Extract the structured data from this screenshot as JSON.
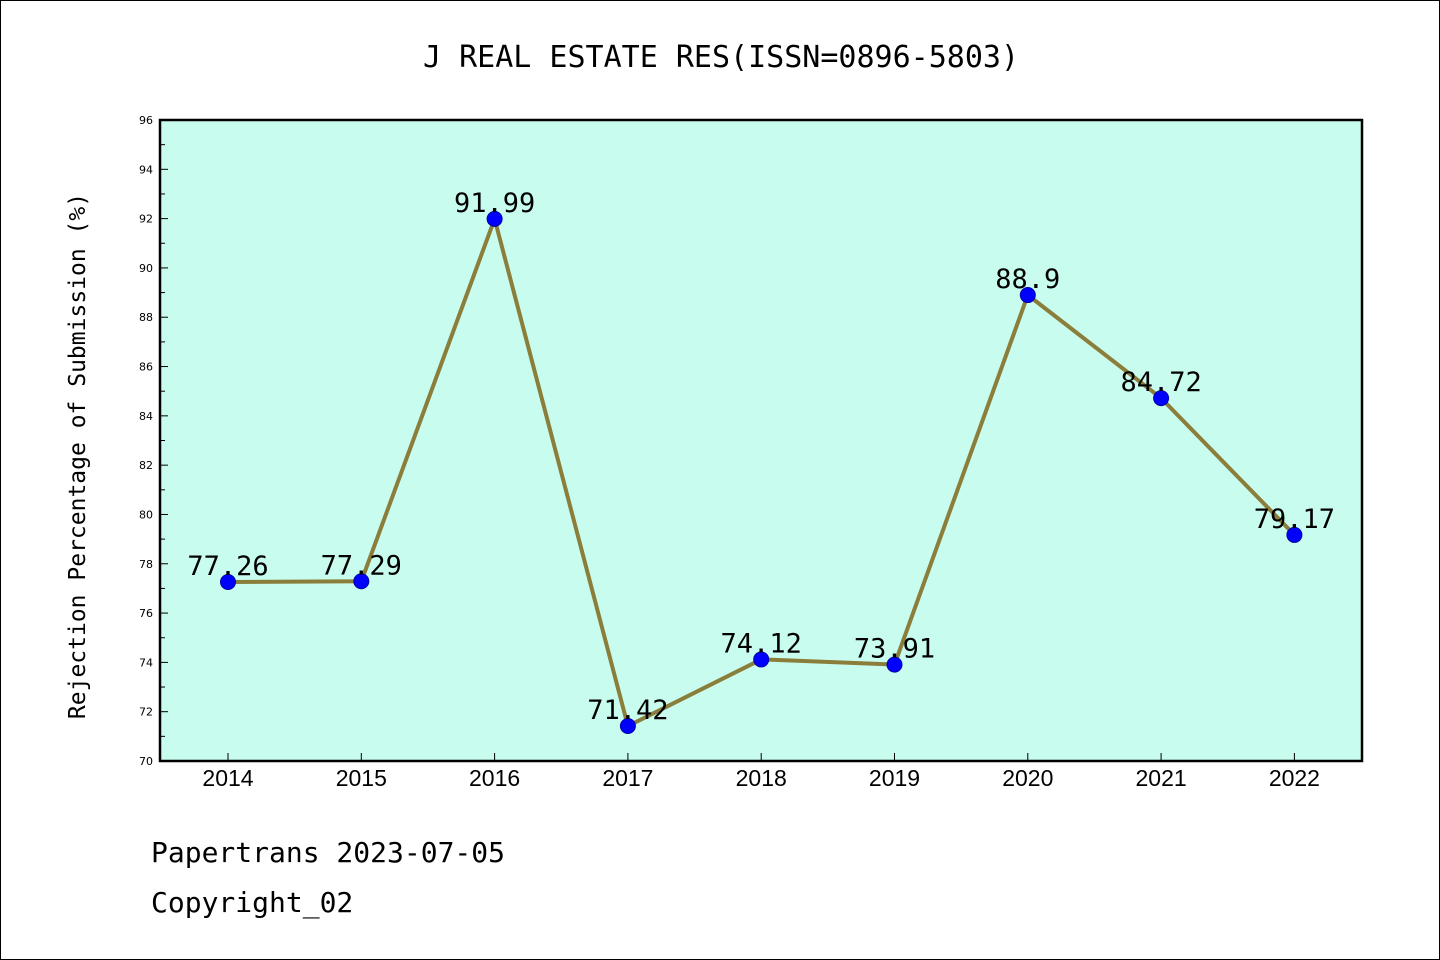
{
  "chart_data": {
    "type": "line",
    "title": "J REAL ESTATE RES(ISSN=0896-5803)",
    "ylabel": "Rejection Percentage of Submission (%)",
    "xlabel": "",
    "categories": [
      "2014",
      "2015",
      "2016",
      "2017",
      "2018",
      "2019",
      "2020",
      "2021",
      "2022"
    ],
    "series": [
      {
        "values": [
          77.26,
          77.29,
          91.99,
          71.42,
          74.12,
          73.91,
          88.9,
          84.72,
          79.17
        ]
      }
    ],
    "data_labels": [
      "77.26",
      "77.29",
      "91.99",
      "71.42",
      "74.12",
      "73.91",
      "88.9",
      "84.72",
      "79.17"
    ],
    "ylim": [
      70,
      96
    ],
    "y_ticks": [
      70,
      72,
      74,
      76,
      78,
      80,
      82,
      84,
      86,
      88,
      90,
      92,
      94,
      96
    ],
    "grid": false,
    "colors": {
      "plot_background": "#c8fcee",
      "line": "#8b7d3a",
      "marker": "#0000ff"
    }
  },
  "footer": {
    "line1": "Papertrans 2023-07-05",
    "line2": "Copyright_02"
  }
}
